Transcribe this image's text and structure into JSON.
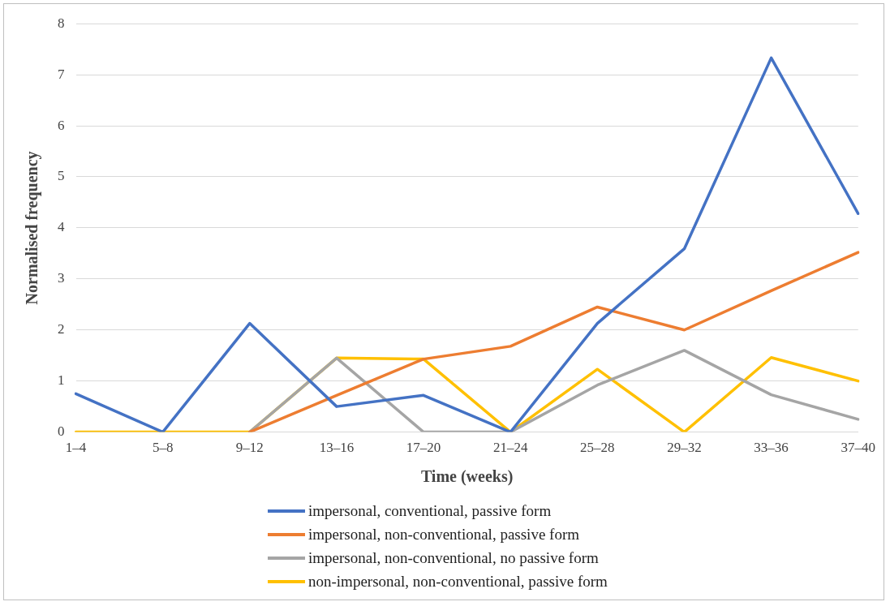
{
  "chart_data": {
    "type": "line",
    "xlabel": "Time (weeks)",
    "ylabel": "Normalised frequency",
    "categories": [
      "1–4",
      "5–8",
      "9–12",
      "13–16",
      "17–20",
      "21–24",
      "25–28",
      "29–32",
      "33–36",
      "37–40"
    ],
    "series": [
      {
        "name": "impersonal, conventional, passive form",
        "color": "#4472c4",
        "values": [
          0.75,
          0,
          2.13,
          0.5,
          0.72,
          0,
          2.13,
          3.59,
          7.33,
          4.28
        ]
      },
      {
        "name": "impersonal, non-conventional, passive form",
        "color": "#ed7d31",
        "values": [
          null,
          null,
          0,
          0.72,
          1.43,
          1.68,
          2.45,
          2,
          2.77,
          3.52
        ]
      },
      {
        "name": "impersonal, non-conventional, no passive form",
        "color": "#a5a5a5",
        "values": [
          null,
          null,
          0,
          1.45,
          0,
          0,
          0.92,
          1.6,
          0.73,
          0.25
        ]
      },
      {
        "name": "non-impersonal, non-conventional, passive form",
        "color": "#ffc000",
        "values": [
          0,
          0,
          0,
          1.45,
          1.43,
          0,
          1.23,
          0,
          1.46,
          1
        ]
      }
    ],
    "ylim": [
      0,
      8
    ],
    "yticks": [
      0,
      1,
      2,
      3,
      4,
      5,
      6,
      7,
      8
    ],
    "grid": "y",
    "legend": "bottom",
    "marker": "none",
    "line_style": "solid"
  }
}
